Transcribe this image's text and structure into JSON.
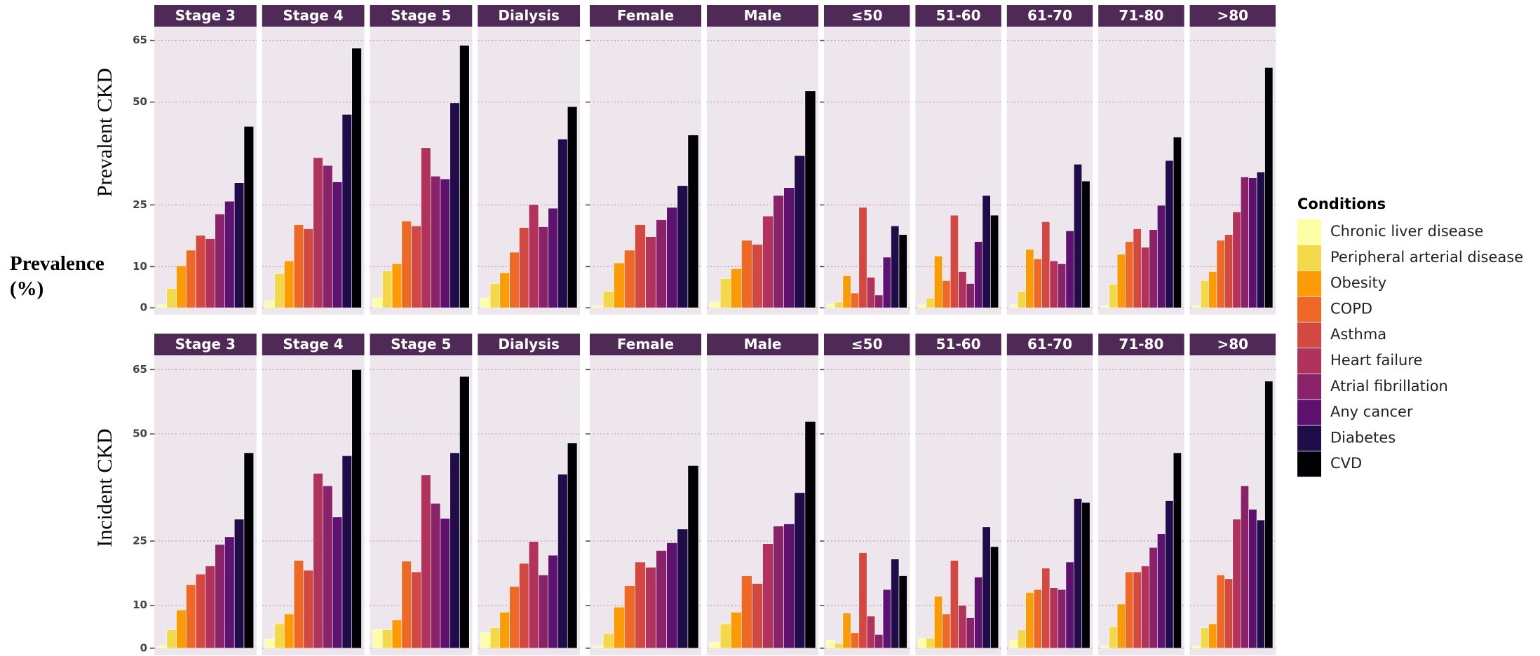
{
  "y_label": "Prevalence (%)",
  "legend_title": "Conditions",
  "conditions": [
    {
      "name": "Chronic liver disease",
      "color": "#fcffa4"
    },
    {
      "name": "Peripheral arterial disease",
      "color": "#f3d94a"
    },
    {
      "name": "Obesity",
      "color": "#fb9b06"
    },
    {
      "name": "COPD",
      "color": "#ed6925"
    },
    {
      "name": "Asthma",
      "color": "#d44842"
    },
    {
      "name": "Heart failure",
      "color": "#b1325a"
    },
    {
      "name": "Atrial fibrillation",
      "color": "#8a226a"
    },
    {
      "name": "Any cancer",
      "color": "#5c126e"
    },
    {
      "name": "Diabetes",
      "color": "#210c4a"
    },
    {
      "name": "CVD",
      "color": "#000004"
    }
  ],
  "chart_data": [
    {
      "type": "bar",
      "title": "Prevalent CKD",
      "ylim": [
        -1,
        68
      ],
      "yticks": [
        0,
        10,
        25,
        50,
        65
      ],
      "grid": true,
      "facets": [
        {
          "title": "Stage 3",
          "values": [
            0.7,
            4.7,
            10.2,
            14,
            17.6,
            16.8,
            22.8,
            25.9,
            30.4,
            44.1
          ]
        },
        {
          "title": "Stage 4",
          "values": [
            1.7,
            8.3,
            11.4,
            20.2,
            19.2,
            36.5,
            34.6,
            30.6,
            47,
            63.1
          ]
        },
        {
          "title": "Stage 5",
          "values": [
            2.4,
            9,
            10.7,
            21.1,
            19.9,
            38.9,
            32,
            31.3,
            49.8,
            63.8
          ]
        },
        {
          "title": "Dialysis",
          "values": [
            2.4,
            5.9,
            8.5,
            13.5,
            19.5,
            25.1,
            19.7,
            24.2,
            41,
            48.9
          ]
        },
        {
          "title": "Female",
          "values": [
            0.5,
            4,
            10.9,
            14,
            20.2,
            17.3,
            21.4,
            24.4,
            29.7,
            42
          ]
        },
        {
          "title": "Male",
          "values": [
            1.4,
            7.1,
            9.5,
            16.4,
            15.4,
            22.3,
            27.3,
            29.2,
            37,
            52.7
          ]
        },
        {
          "title": "≤50",
          "values": [
            0.9,
            1.4,
            7.8,
            3.6,
            24.4,
            7.4,
            3.1,
            12.3,
            19.9,
            17.8
          ]
        },
        {
          "title": "51-60",
          "values": [
            0.7,
            2.4,
            12.6,
            6.6,
            22.5,
            8.8,
            5.9,
            16.1,
            27.3,
            22.5
          ]
        },
        {
          "title": "61-70",
          "values": [
            0.7,
            4,
            14.2,
            11.9,
            20.9,
            11.4,
            10.7,
            18.7,
            34.9,
            30.8
          ]
        },
        {
          "title": "71-80",
          "values": [
            0.5,
            5.7,
            13,
            16.1,
            19.2,
            14.7,
            19,
            24.9,
            35.8,
            41.5
          ]
        },
        {
          "title": ">80",
          "values": [
            0.5,
            6.6,
            8.8,
            16.4,
            17.8,
            23.3,
            31.8,
            31.6,
            33,
            58.4
          ]
        }
      ]
    },
    {
      "type": "bar",
      "title": "Incident CKD",
      "ylim": [
        -1,
        68
      ],
      "yticks": [
        0,
        10,
        25,
        50,
        65
      ],
      "grid": true,
      "facets": [
        {
          "title": "Stage 3",
          "values": [
            0.5,
            4.3,
            8.9,
            14.8,
            17.3,
            19.2,
            24.2,
            26,
            30.1,
            45.6
          ]
        },
        {
          "title": "Stage 4",
          "values": [
            2.1,
            5.7,
            8,
            20.5,
            18.2,
            40.8,
            37.9,
            30.6,
            44.9,
            65
          ]
        },
        {
          "title": "Stage 5",
          "values": [
            4.3,
            4.3,
            6.6,
            20.3,
            17.8,
            40.4,
            33.8,
            30.3,
            45.6,
            63.4
          ]
        },
        {
          "title": "Dialysis",
          "values": [
            3.6,
            4.8,
            8.4,
            14.4,
            19.8,
            24.9,
            17.1,
            21.7,
            40.6,
            47.9
          ]
        },
        {
          "title": "Female",
          "values": [
            0.5,
            3.4,
            9.6,
            14.6,
            20.1,
            18.9,
            22.8,
            24.6,
            27.8,
            42.6
          ]
        },
        {
          "title": "Male",
          "values": [
            1.4,
            5.7,
            8.4,
            16.9,
            15.1,
            24.4,
            28.5,
            29,
            36.3,
            52.9
          ]
        },
        {
          "title": "≤50",
          "values": [
            1.8,
            1.1,
            8.2,
            3.6,
            22.3,
            7.5,
            3.2,
            13.7,
            20.8,
            16.9
          ]
        },
        {
          "title": "51-60",
          "values": [
            2.3,
            2.3,
            12.1,
            8,
            20.5,
            10,
            7.1,
            16.6,
            28.3,
            23.7
          ]
        },
        {
          "title": "61-70",
          "values": [
            1.8,
            4.3,
            13,
            13.7,
            18.7,
            14.1,
            13.7,
            20.1,
            34.9,
            34
          ]
        },
        {
          "title": "71-80",
          "values": [
            0.5,
            5,
            10.3,
            17.8,
            17.8,
            19.2,
            23.5,
            26.7,
            34.4,
            45.6
          ]
        },
        {
          "title": ">80",
          "values": [
            0.5,
            4.8,
            5.7,
            17.1,
            16.2,
            30.1,
            37.9,
            32.4,
            29.9,
            62.3
          ]
        }
      ]
    }
  ]
}
